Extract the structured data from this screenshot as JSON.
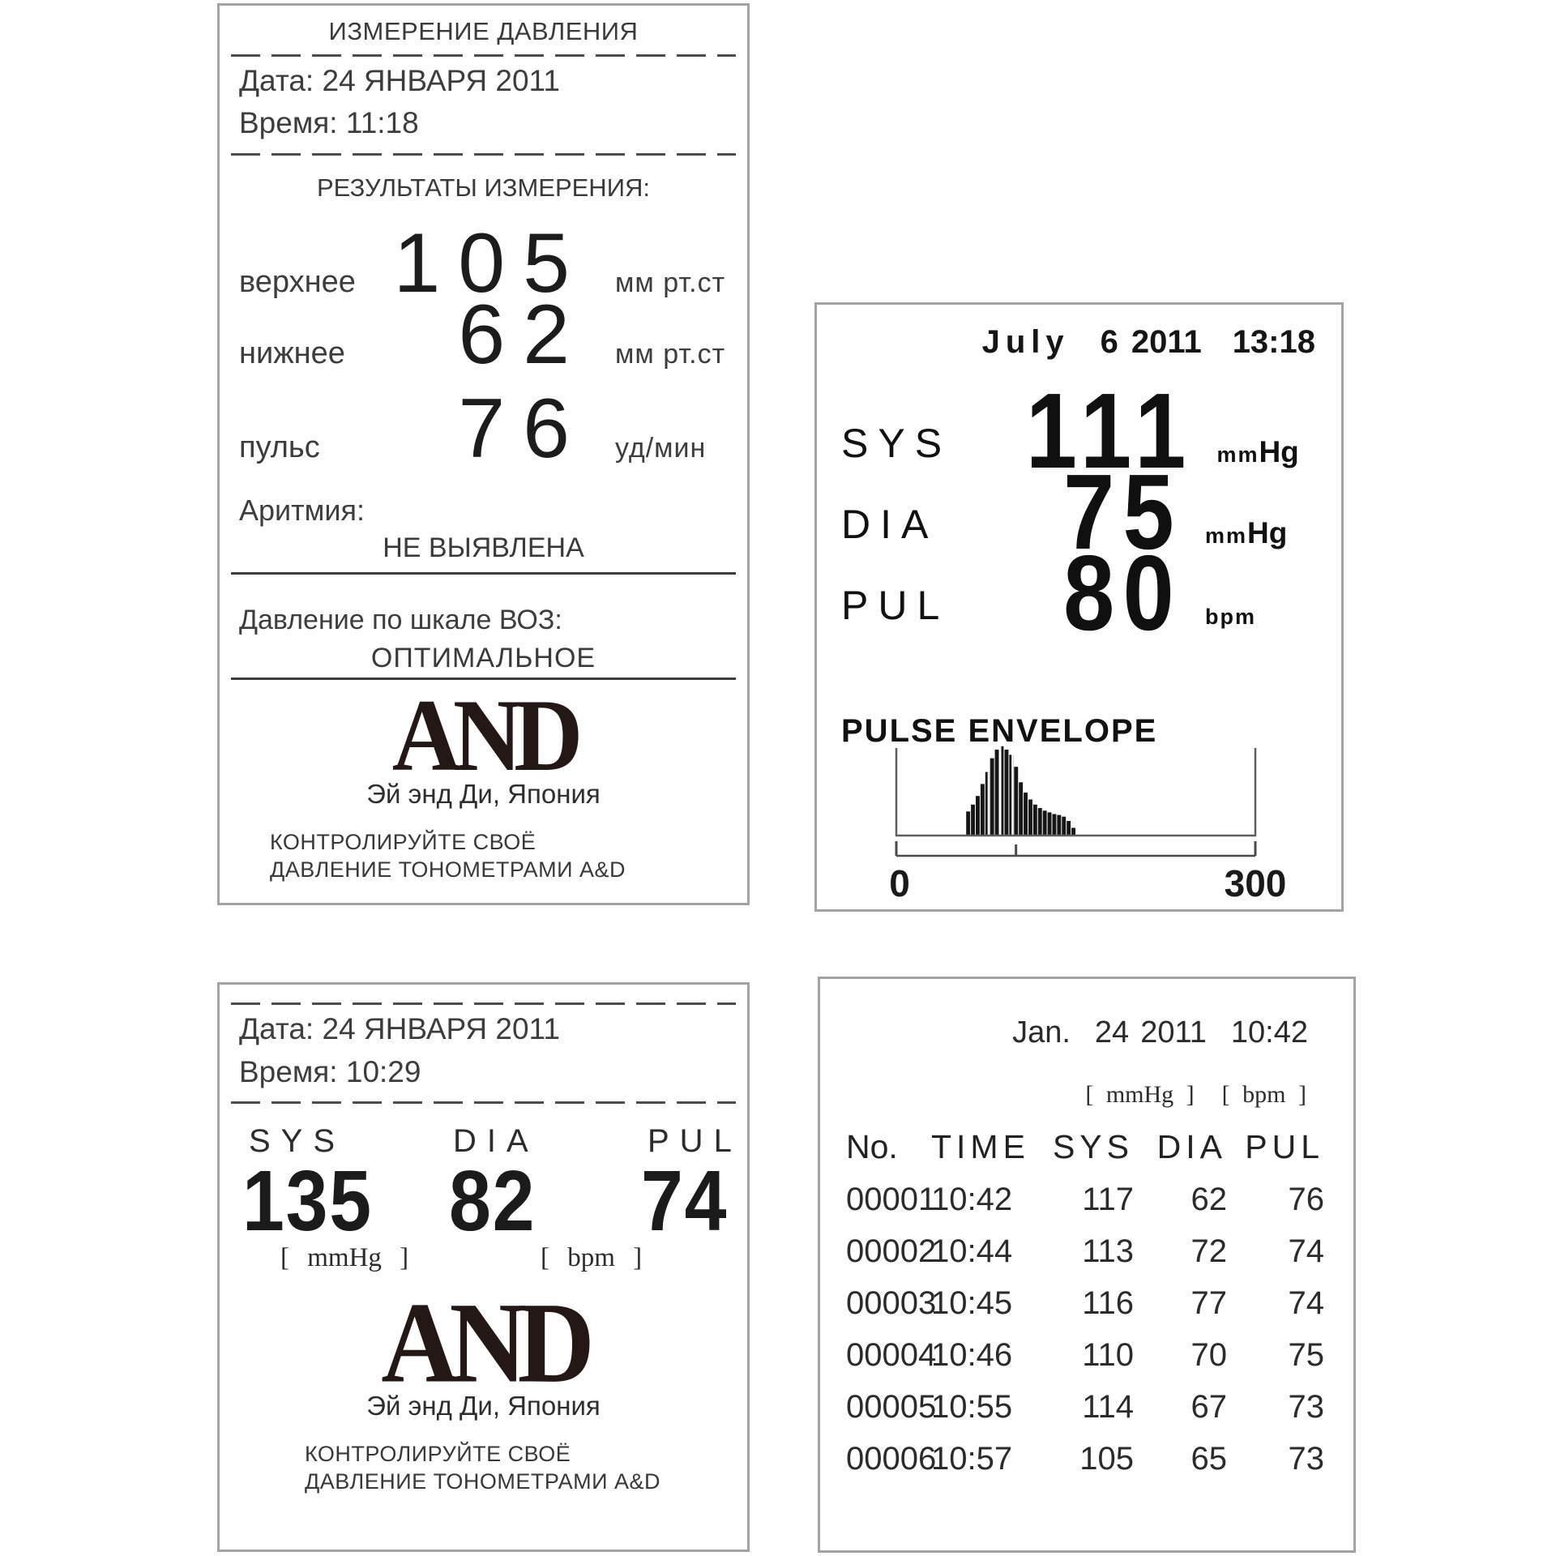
{
  "brand": {
    "logo": "AND"
  },
  "receipt_full": {
    "title": "ИЗМЕРЕНИЕ ДАВЛЕНИЯ",
    "date_line": "Дата: 24 ЯНВАРЯ 2011",
    "time_line": "Время: 11:18",
    "results_heading": "РЕЗУЛЬТАТЫ ИЗМЕРЕНИЯ:",
    "readings": [
      {
        "label": "верхнее",
        "value": "105",
        "unit": "мм рт.ст"
      },
      {
        "label": "нижнее",
        "value": "62",
        "unit": "мм рт.ст"
      },
      {
        "label": "пульс",
        "value": "76",
        "unit": "уд/мин"
      }
    ],
    "arrhythmia_label": "Аритмия:",
    "arrhythmia_value": "НЕ ВЫЯВЛЕНА",
    "who_scale_label": "Давление по шкале ВОЗ:",
    "who_scale_value": "ОПТИМАЛЬНОЕ",
    "brand_subtitle": "Эй энд Ди, Япония",
    "slogan_line1": "КОНТРОЛИРУЙТЕ СВОЁ",
    "slogan_line2": "ДАВЛЕНИЕ ТОНОМЕТРАМИ A&D"
  },
  "display": {
    "date": {
      "month": "July",
      "day": "6",
      "year": "2011",
      "time": "13:18"
    },
    "readings": [
      {
        "label": "SYS",
        "value": "111",
        "unit_a": "mm",
        "unit_b": "Hg"
      },
      {
        "label": "DIA",
        "value": "75",
        "unit_a": "mm",
        "unit_b": "Hg"
      },
      {
        "label": "PUL",
        "value": "80",
        "unit_a": "bpm",
        "unit_b": ""
      }
    ]
  },
  "receipt_short": {
    "date_line": "Дата: 24 ЯНВАРЯ 2011",
    "time_line": "Время: 10:29",
    "columns": [
      {
        "label": "SYS",
        "value": "135"
      },
      {
        "label": "DIA",
        "value": "82"
      },
      {
        "label": "PUL",
        "value": "74"
      }
    ],
    "unit_mmhg": "[ mmHg ]",
    "unit_bpm": "[ bpm ]",
    "brand_subtitle": "Эй энд Ди, Япония",
    "slogan_line1": "КОНТРОЛИРУЙТЕ СВОЁ",
    "slogan_line2": "ДАВЛЕНИЕ ТОНОМЕТРАМИ A&D"
  },
  "log_table": {
    "date": {
      "month": "Jan.",
      "day": "24",
      "year": "2011",
      "time": "10:42"
    },
    "unit_mmhg": "[ mmHg ]",
    "unit_bpm": "[ bpm ]",
    "headers": [
      "No.",
      "TIME",
      "SYS",
      "DIA",
      "PUL"
    ],
    "rows": [
      [
        "00001",
        "10:42",
        "117",
        "62",
        "76"
      ],
      [
        "00002",
        "10:44",
        "113",
        "72",
        "74"
      ],
      [
        "00003",
        "10:45",
        "116",
        "77",
        "74"
      ],
      [
        "00004",
        "10:46",
        "110",
        "70",
        "75"
      ],
      [
        "00005",
        "10:55",
        "114",
        "67",
        "73"
      ],
      [
        "00006",
        "10:57",
        "105",
        "65",
        "73"
      ]
    ]
  },
  "chart_data": {
    "type": "area",
    "title": "PULSE ENVELOPE",
    "x_range": [
      0,
      300
    ],
    "x_tick_labels": [
      "0",
      "300"
    ],
    "x_minor_tick": 100,
    "grid": false,
    "y_normalized": true,
    "bars": [
      [
        60,
        0.28
      ],
      [
        64,
        0.36
      ],
      [
        68,
        0.46
      ],
      [
        72,
        0.6
      ],
      [
        76,
        0.74
      ],
      [
        80,
        0.9
      ],
      [
        84,
        1.0
      ],
      [
        88,
        1.04
      ],
      [
        92,
        1.0
      ],
      [
        96,
        0.94
      ],
      [
        100,
        0.8
      ],
      [
        104,
        0.62
      ],
      [
        108,
        0.5
      ],
      [
        112,
        0.42
      ],
      [
        116,
        0.36
      ],
      [
        120,
        0.32
      ],
      [
        124,
        0.29
      ],
      [
        128,
        0.27
      ],
      [
        132,
        0.25
      ],
      [
        136,
        0.24
      ],
      [
        140,
        0.22
      ],
      [
        144,
        0.17
      ],
      [
        148,
        0.09
      ]
    ],
    "white_streaks": [
      77,
      87,
      97
    ]
  }
}
